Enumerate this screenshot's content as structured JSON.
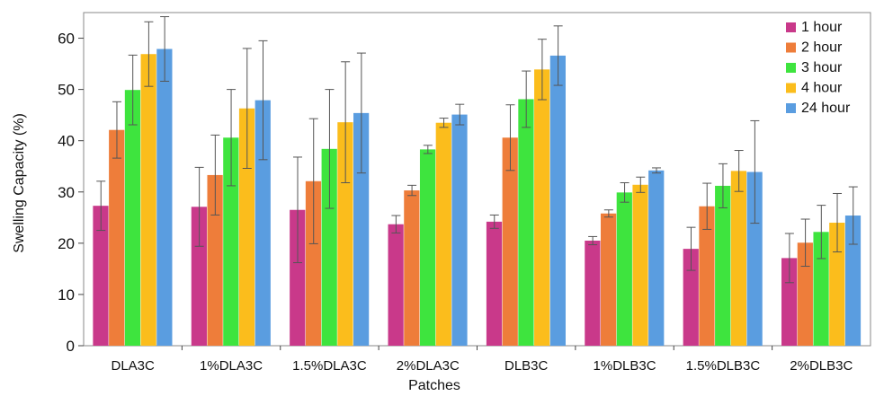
{
  "chart_data": {
    "type": "bar",
    "xlabel": "Patches",
    "ylabel": "Swelling Capacity (%)",
    "ylim": [
      0,
      65
    ],
    "yticks": [
      0,
      10,
      20,
      30,
      40,
      50,
      60
    ],
    "grid": false,
    "legend_position": "top-right",
    "error_bars": true,
    "categories": [
      "DLA3C",
      "1%DLA3C",
      "1.5%DLA3C",
      "2%DLA3C",
      "DLB3C",
      "1%DLB3C",
      "1.5%DLB3C",
      "2%DLB3C"
    ],
    "series": [
      {
        "name": "1 hour",
        "color": "#c9398a",
        "values": [
          27.3,
          27.1,
          26.5,
          23.7,
          24.2,
          20.5,
          18.9,
          17.1
        ],
        "errors": [
          4.8,
          7.7,
          10.3,
          1.7,
          1.3,
          0.8,
          4.2,
          4.8
        ]
      },
      {
        "name": "2 hour",
        "color": "#ee7d3a",
        "values": [
          42.1,
          33.3,
          32.1,
          30.3,
          40.6,
          25.8,
          27.2,
          20.1
        ],
        "errors": [
          5.5,
          7.8,
          12.2,
          1.0,
          6.4,
          0.7,
          4.5,
          4.6
        ]
      },
      {
        "name": "3 hour",
        "color": "#3ee43e",
        "values": [
          49.9,
          40.6,
          38.4,
          38.3,
          48.1,
          29.9,
          31.2,
          22.2
        ],
        "errors": [
          6.8,
          9.4,
          11.6,
          0.8,
          5.5,
          1.9,
          4.3,
          5.2
        ]
      },
      {
        "name": "4 hour",
        "color": "#fbbd1c",
        "values": [
          56.9,
          46.3,
          43.6,
          43.5,
          53.9,
          31.4,
          34.1,
          24.0
        ],
        "errors": [
          6.3,
          11.7,
          11.8,
          0.9,
          5.9,
          1.5,
          4.0,
          5.7
        ]
      },
      {
        "name": "24 hour",
        "color": "#5a9de0",
        "values": [
          57.9,
          47.9,
          45.4,
          45.1,
          56.6,
          34.2,
          33.9,
          25.4
        ],
        "errors": [
          6.3,
          11.6,
          11.7,
          2.0,
          5.8,
          0.5,
          10.0,
          5.6
        ]
      }
    ]
  }
}
